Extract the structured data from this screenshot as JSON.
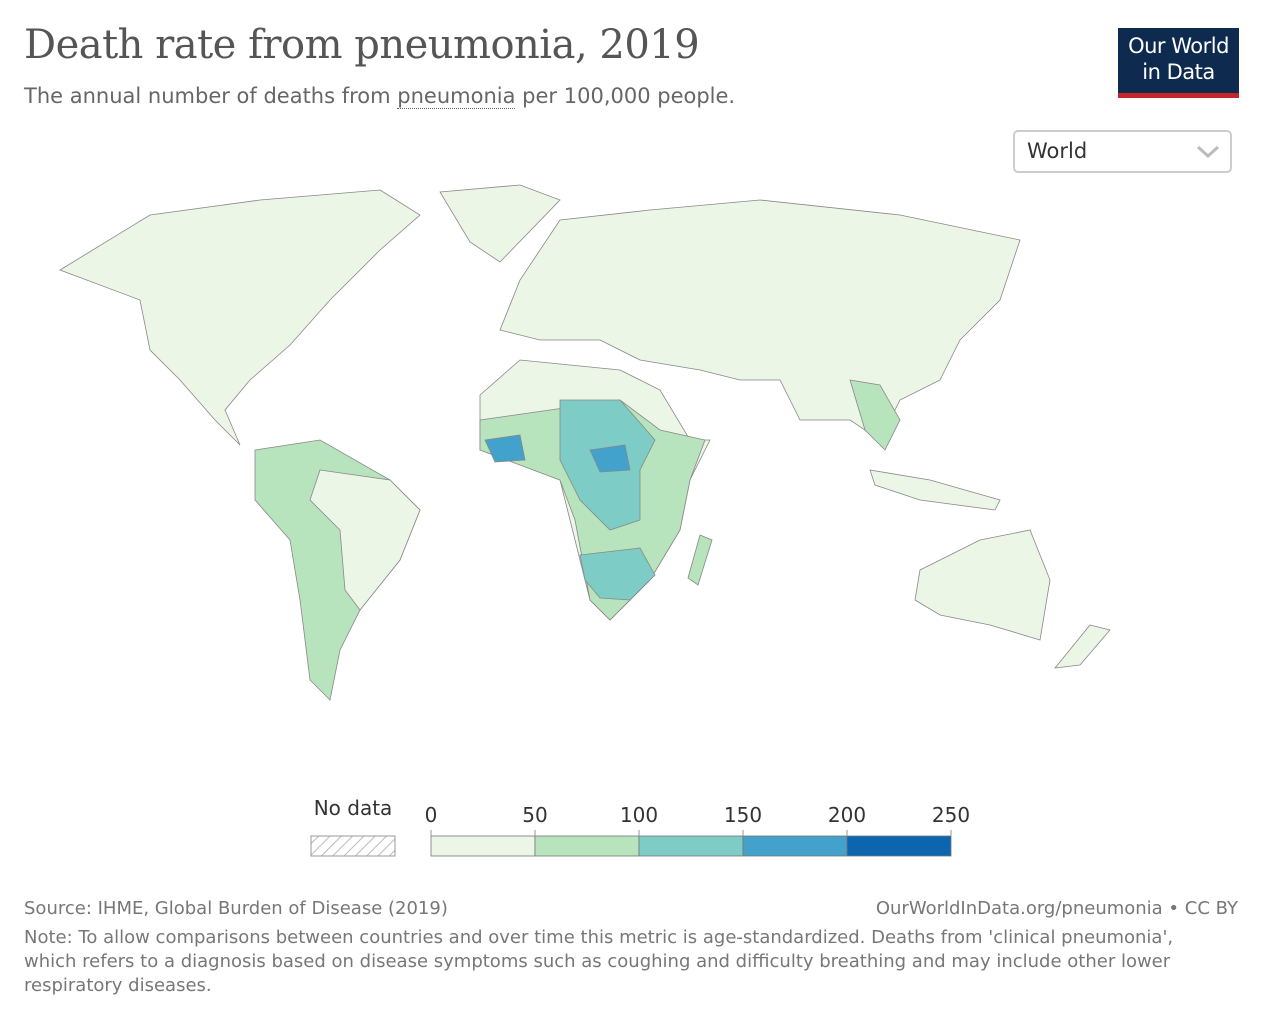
{
  "chart_data": {
    "type": "map",
    "title": "Death rate from pneumonia, 2019",
    "subtitle_parts": [
      "The annual number of deaths from",
      "pneumonia",
      "per 100,000 people."
    ],
    "logo": [
      "Our World",
      "in Data"
    ],
    "region_selector": "World",
    "legend": {
      "no_data": "No data",
      "bins": [
        0,
        50,
        100,
        150,
        200,
        250
      ],
      "colors": [
        "#ebf6e6",
        "#b7e3bd",
        "#7dccc5",
        "#42a2cc",
        "#0c65ae"
      ]
    },
    "source": "Source: IHME, Global Burden of Disease (2019)",
    "url": "OurWorldInData.org/pneumonia • CC BY",
    "note": "Note: To allow comparisons between countries and over time this metric is age-standardized. Deaths from 'clinical pneumonia', which refers to a diagnosis based on disease symptoms such as coughing and difficulty breathing and may include other lower respiratory diseases."
  }
}
